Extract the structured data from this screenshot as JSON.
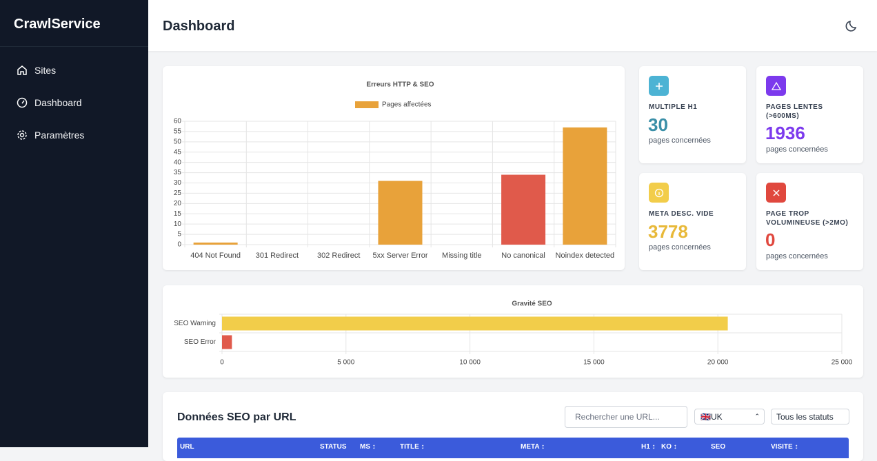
{
  "sidebar": {
    "brand": "CrawlService",
    "nav": [
      "Sites",
      "Dashboard",
      "Paramètres"
    ]
  },
  "header": {
    "title": "Dashboard"
  },
  "chart_data": [
    {
      "type": "bar",
      "title": "Erreurs HTTP & SEO",
      "categories": [
        "404 Not Found",
        "301 Redirect",
        "302 Redirect",
        "5xx Server Error",
        "Missing title",
        "No canonical",
        "Noindex detected"
      ],
      "series": [
        {
          "name": "Pages affectées",
          "color": "#e8a23a",
          "values": [
            1,
            0,
            0,
            31,
            0,
            34,
            57
          ],
          "colors": [
            "#e8a23a",
            "#e8a23a",
            "#e8a23a",
            "#e8a23a",
            "#e8a23a",
            "#e05a4b",
            "#e8a23a"
          ]
        }
      ],
      "ylim": [
        0,
        60
      ],
      "yticks": [
        0,
        5,
        10,
        15,
        20,
        25,
        30,
        35,
        40,
        45,
        50,
        55,
        60
      ],
      "grid": true
    },
    {
      "type": "barh",
      "title": "Gravité SEO",
      "categories": [
        "SEO Warning",
        "SEO Error"
      ],
      "values": [
        20400,
        400
      ],
      "colors": [
        "#f2cd4a",
        "#e05a4b"
      ],
      "xlim": [
        0,
        25000
      ],
      "xticks": [
        0,
        {
          "value": 5000,
          "label": "5 000"
        },
        {
          "value": 10000,
          "label": "10 000"
        },
        {
          "value": 15000,
          "label": "15 000"
        },
        {
          "value": 20000,
          "label": "20 000"
        },
        {
          "value": 25000,
          "label": "25 000"
        }
      ],
      "grid": true
    }
  ],
  "stats": [
    {
      "label": "MULTIPLE H1",
      "value": 30,
      "sub": "pages concernées"
    },
    {
      "label": "PAGES LENTES (>600MS)",
      "value": 1936,
      "sub": "pages concernées"
    },
    {
      "label": "META DESC. VIDE",
      "value": 3778,
      "sub": "pages concernées"
    },
    {
      "label": "PAGE TROP VOLUMINEUSE (>2MO)",
      "value": 0,
      "sub": "pages concernées"
    }
  ],
  "table": {
    "title": "Données SEO par URL",
    "search_placeholder": "Rechercher une URL...",
    "country": "🇬🇧UK",
    "status_filter": "Tous les statuts",
    "columns": [
      "URL",
      "STATUS",
      "MS ↕",
      "TITLE ↕",
      "META ↕",
      "H1 ↕",
      "KO ↕",
      "SEO",
      "VISITE ↕"
    ]
  }
}
